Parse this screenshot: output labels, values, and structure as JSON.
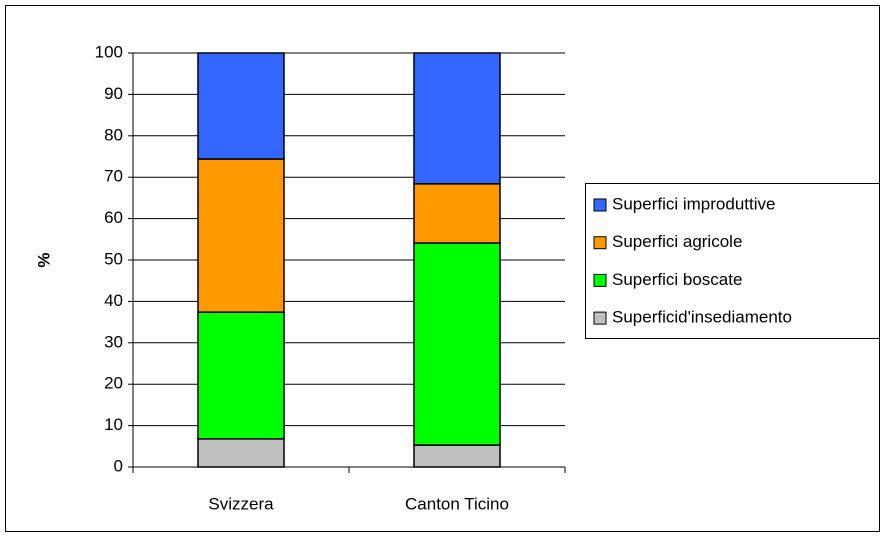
{
  "chart_data": {
    "type": "stacked_bar",
    "y_label": "%",
    "categories": [
      "Svizzera",
      "Canton Ticino"
    ],
    "series": [
      {
        "name": "Superficid'insediamento",
        "color": "#c0c0c0",
        "values": [
          6.8,
          5.3
        ]
      },
      {
        "name": "Superfici boscate",
        "color": "#00ff00",
        "values": [
          30.6,
          48.8
        ]
      },
      {
        "name": "Superfici agricole",
        "color": "#ff9900",
        "values": [
          37.0,
          14.3
        ]
      },
      {
        "name": "Superfici improduttive",
        "color": "#3366ff",
        "values": [
          25.6,
          31.6
        ]
      }
    ],
    "ylim": [
      0,
      100
    ],
    "yticks": [
      0,
      10,
      20,
      30,
      40,
      50,
      60,
      70,
      80,
      90,
      100
    ],
    "grid": true,
    "legend": "right"
  }
}
